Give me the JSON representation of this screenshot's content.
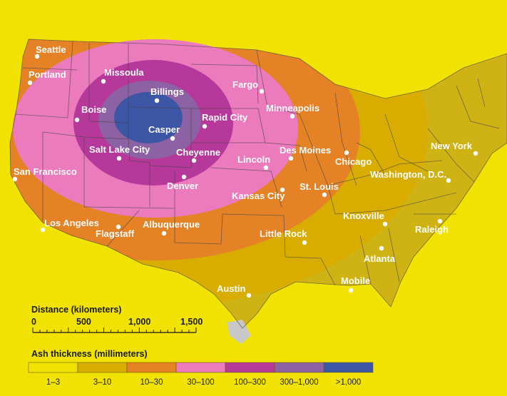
{
  "legend": {
    "title": "Ash thickness (millimeters)",
    "bins": [
      {
        "label": "1–3",
        "color": "#f1e201"
      },
      {
        "label": "3–10",
        "color": "#d8ad00"
      },
      {
        "label": "10–30",
        "color": "#e48225"
      },
      {
        "label": "30–100",
        "color": "#eb7bbd"
      },
      {
        "label": "100–300",
        "color": "#b6389a"
      },
      {
        "label": "300–1,000",
        "color": "#8d62a4"
      },
      {
        "label": ">1,000",
        "color": "#3c55a5"
      }
    ]
  },
  "scale_bar": {
    "title": "Distance (kilometers)",
    "ticks": [
      "0",
      "500",
      "1,000",
      "1,500"
    ]
  },
  "cities": [
    {
      "name": "Seattle"
    },
    {
      "name": "Portland"
    },
    {
      "name": "Missoula"
    },
    {
      "name": "Billings"
    },
    {
      "name": "Boise"
    },
    {
      "name": "Casper"
    },
    {
      "name": "Rapid City"
    },
    {
      "name": "Fargo"
    },
    {
      "name": "Minneapolis"
    },
    {
      "name": "Salt Lake City"
    },
    {
      "name": "Cheyenne"
    },
    {
      "name": "Lincoln"
    },
    {
      "name": "Des Moines"
    },
    {
      "name": "Chicago"
    },
    {
      "name": "New York"
    },
    {
      "name": "San Francisco"
    },
    {
      "name": "Denver"
    },
    {
      "name": "Kansas City"
    },
    {
      "name": "St. Louis"
    },
    {
      "name": "Washington, D.C."
    },
    {
      "name": "Los Angeles"
    },
    {
      "name": "Flagstaff"
    },
    {
      "name": "Albuquerque"
    },
    {
      "name": "Knoxville"
    },
    {
      "name": "Raleigh"
    },
    {
      "name": "Little Rock"
    },
    {
      "name": "Atlanta"
    },
    {
      "name": "Mobile"
    },
    {
      "name": "Austin"
    }
  ]
}
